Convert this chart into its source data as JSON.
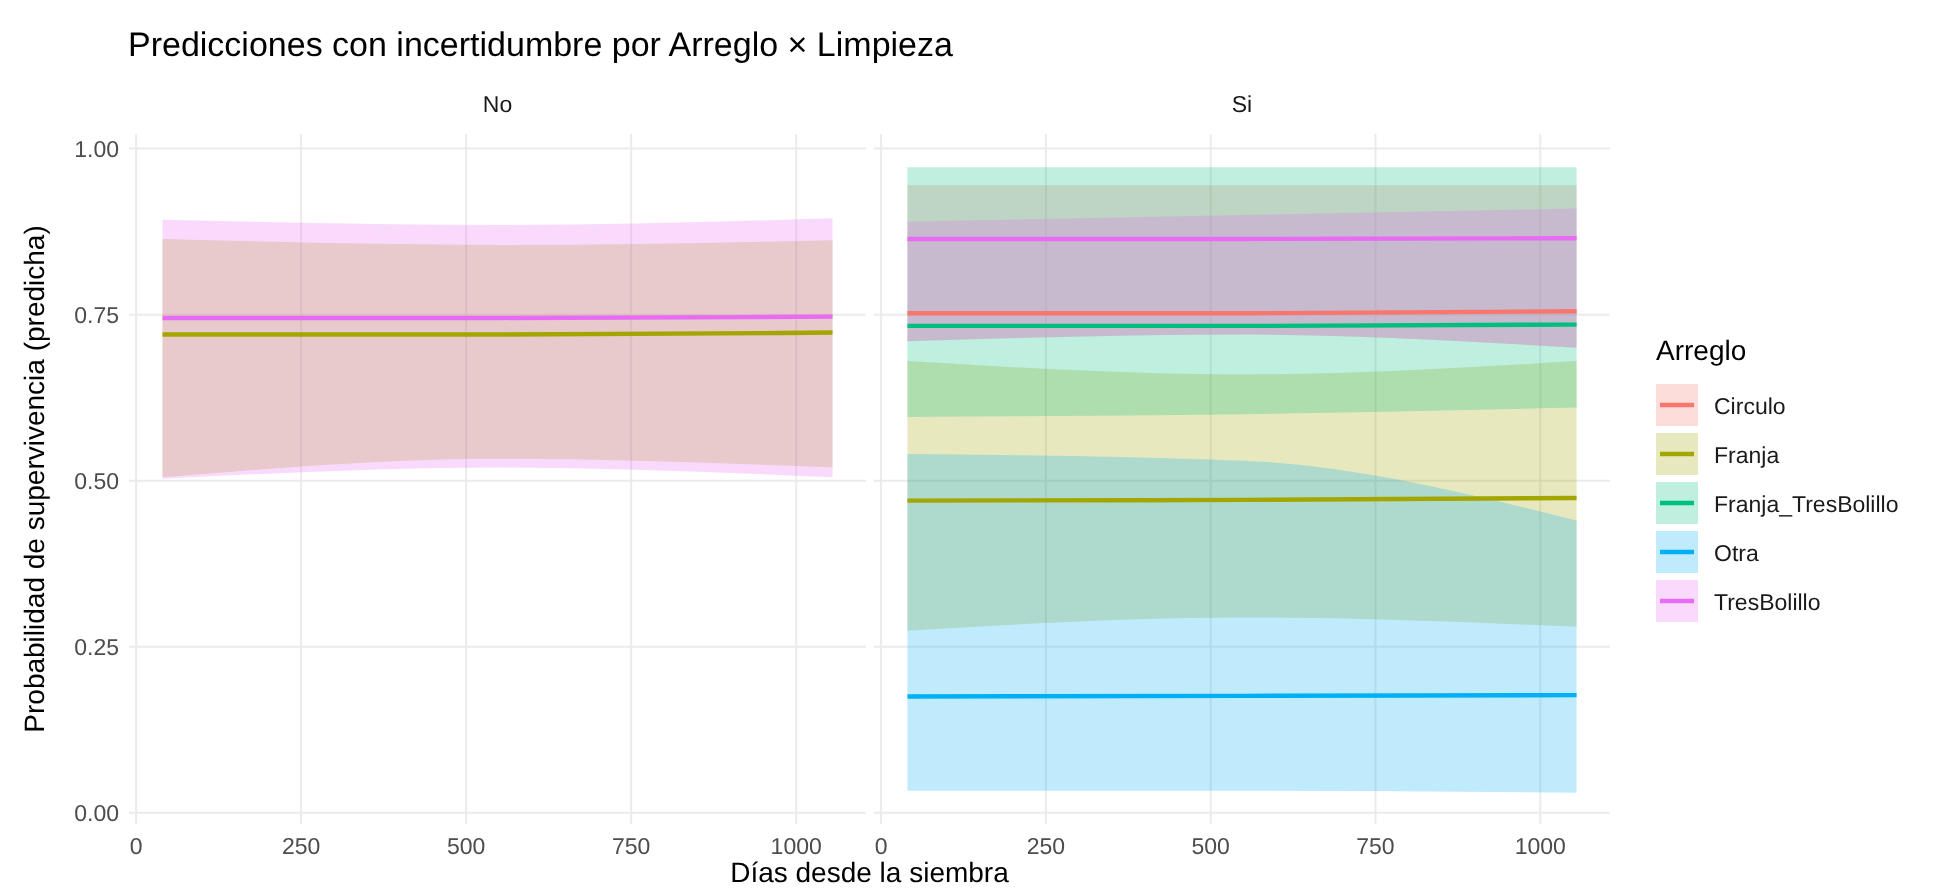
{
  "chart_data": [
    {
      "type": "line",
      "title": "Predicciones con incertidumbre por Arreglo × Limpieza",
      "subtitle": "No",
      "xlabel": "Días desde la siembra",
      "ylabel": "Probabilidad de supervivencia (predicha)",
      "xlim": [
        -10.75,
        1105.75
      ],
      "ylim": [
        -0.017,
        1.022
      ],
      "xticks": [
        0,
        250,
        500,
        750,
        1000
      ],
      "yticks": [
        {
          "value": 0,
          "label": "0.00"
        },
        {
          "value": 0.25,
          "label": "0.25"
        },
        {
          "value": 0.5,
          "label": "0.50"
        },
        {
          "value": 0.75,
          "label": "0.75"
        },
        {
          "value": 1,
          "label": "1.00"
        }
      ],
      "grid": true,
      "legend": false,
      "series": [
        {
          "color": "#a3a500",
          "x": [
            40,
            550,
            1055
          ],
          "values": [
            0.72,
            0.72,
            0.723
          ],
          "lower": [
            0.505,
            0.533,
            0.52
          ],
          "upper": [
            0.864,
            0.855,
            0.862
          ]
        },
        {
          "color": "#e76bf3",
          "x": [
            40,
            550,
            1055
          ],
          "values": [
            0.745,
            0.745,
            0.747
          ],
          "lower": [
            0.503,
            0.52,
            0.505
          ],
          "upper": [
            0.893,
            0.885,
            0.895
          ]
        }
      ]
    },
    {
      "type": "line",
      "subtitle": "Si",
      "legend_title": "Arreglo",
      "xlim": [
        -10.75,
        1105.75
      ],
      "ylim": [
        -0.017,
        1.022
      ],
      "xticks": [
        0,
        250,
        500,
        750,
        1000
      ],
      "yticks": [
        0,
        0.25,
        0.5,
        0.75,
        1
      ],
      "tick_labels": "x",
      "grid": true,
      "legend": "right",
      "series": [
        {
          "name": "Circulo",
          "color": "#f8766d",
          "x": [
            40,
            550,
            1055
          ],
          "values": [
            0.752,
            0.752,
            0.755
          ],
          "lower": [
            0.71,
            0.72,
            0.7
          ],
          "upper": [
            0.945,
            0.945,
            0.945
          ]
        },
        {
          "name": "Franja",
          "color": "#a3a500",
          "x": [
            40,
            550,
            1055
          ],
          "values": [
            0.47,
            0.471,
            0.474
          ],
          "lower": [
            0.274,
            0.294,
            0.28
          ],
          "upper": [
            0.68,
            0.66,
            0.68
          ]
        },
        {
          "name": "Franja_TresBolillo",
          "color": "#00bf7d",
          "x": [
            40,
            550,
            1055
          ],
          "values": [
            0.733,
            0.733,
            0.735
          ],
          "lower": [
            0.596,
            0.6,
            0.61
          ],
          "upper": [
            0.972,
            0.972,
            0.972
          ]
        },
        {
          "name": "Otra",
          "color": "#00b0f6",
          "x": [
            40,
            550,
            1055
          ],
          "values": [
            0.175,
            0.176,
            0.177
          ],
          "lower": [
            0.033,
            0.033,
            0.03
          ],
          "upper": [
            0.54,
            0.53,
            0.44
          ]
        },
        {
          "name": "TresBolillo",
          "color": "#e76bf3",
          "x": [
            40,
            550,
            1055
          ],
          "values": [
            0.864,
            0.864,
            0.865
          ],
          "lower": [
            0.71,
            0.72,
            0.7
          ],
          "upper": [
            0.89,
            0.9,
            0.91
          ]
        }
      ]
    }
  ]
}
